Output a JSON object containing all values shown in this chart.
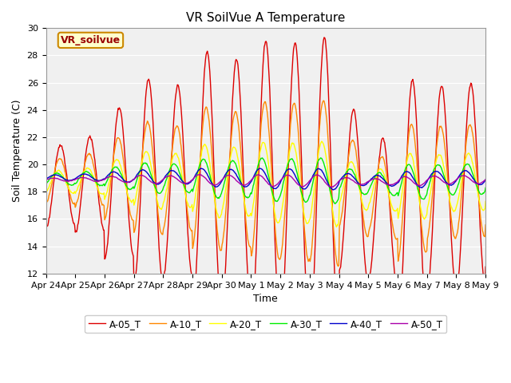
{
  "title": "VR SoilVue A Temperature",
  "xlabel": "Time",
  "ylabel": "Soil Temperature (C)",
  "ylim": [
    12,
    30
  ],
  "yticks": [
    12,
    14,
    16,
    18,
    20,
    22,
    24,
    26,
    28,
    30
  ],
  "series_colors": {
    "A-05_T": "#dd0000",
    "A-10_T": "#ff8800",
    "A-20_T": "#ffff00",
    "A-30_T": "#00ee00",
    "A-40_T": "#0000cc",
    "A-50_T": "#aa00aa"
  },
  "series_names": [
    "A-05_T",
    "A-10_T",
    "A-20_T",
    "A-30_T",
    "A-40_T",
    "A-50_T"
  ],
  "legend_label": "VR_soilvue",
  "plot_bg_color": "#f0f0f0",
  "n_points": 720,
  "n_days": 15,
  "tick_labels": [
    "Apr 24",
    "Apr 25",
    "Apr 26",
    "Apr 27",
    "Apr 28",
    "Apr 29",
    "Apr 30",
    "May 1",
    "May 2",
    "May 3",
    "May 4",
    "May 5",
    "May 6",
    "May 7",
    "May 8",
    "May 9"
  ],
  "linewidth": 1.0,
  "title_fontsize": 11,
  "axis_fontsize": 9,
  "tick_fontsize": 8
}
